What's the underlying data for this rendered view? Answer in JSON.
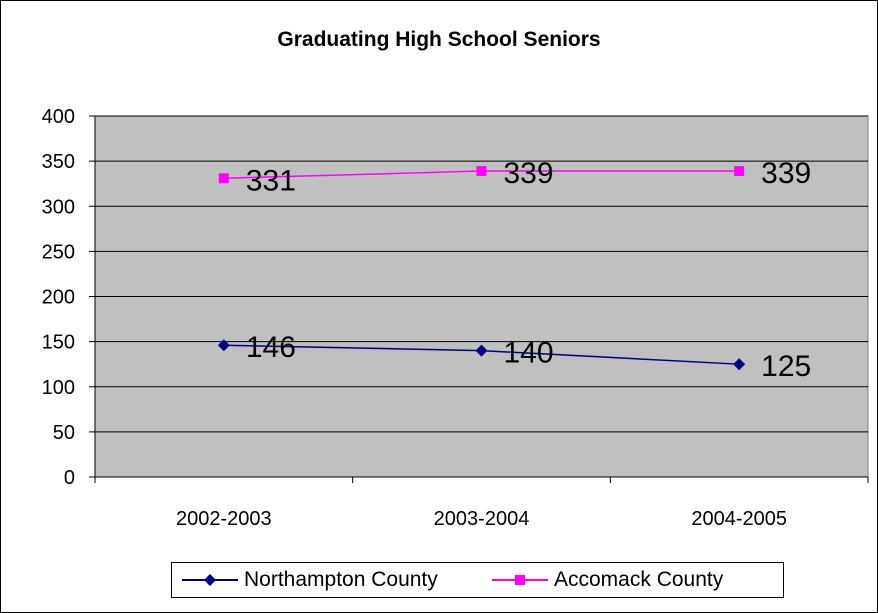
{
  "chart_data": {
    "type": "line",
    "title": "Graduating High School Seniors",
    "categories": [
      "2002-2003",
      "2003-2004",
      "2004-2005"
    ],
    "series": [
      {
        "name": "Northampton County",
        "values": [
          146,
          140,
          125
        ],
        "color": "#000080",
        "marker": "diamond"
      },
      {
        "name": "Accomack County",
        "values": [
          331,
          339,
          339
        ],
        "color": "#ff00ff",
        "marker": "square"
      }
    ],
    "ylim": [
      0,
      400
    ],
    "yticks": [
      0,
      50,
      100,
      150,
      200,
      250,
      300,
      350,
      400
    ],
    "grid": true,
    "plot_background": "#c0c0c0",
    "legend_position": "bottom"
  }
}
